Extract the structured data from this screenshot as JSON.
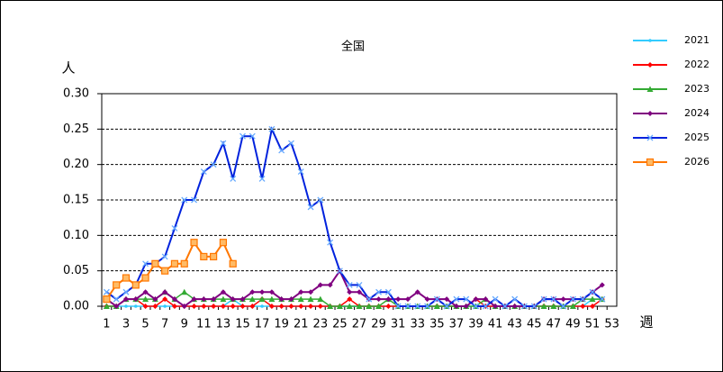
{
  "chart_data": {
    "type": "line",
    "title": "全国",
    "y_label": "人",
    "x_label": "週",
    "categories": [
      1,
      null,
      3,
      null,
      5,
      null,
      7,
      null,
      9,
      null,
      11,
      null,
      13,
      null,
      15,
      null,
      17,
      null,
      19,
      null,
      21,
      null,
      23,
      null,
      25,
      null,
      27,
      null,
      29,
      null,
      31,
      null,
      33,
      null,
      35,
      null,
      37,
      null,
      39,
      null,
      41,
      null,
      43,
      null,
      45,
      null,
      47,
      null,
      49,
      null,
      51,
      null,
      53
    ],
    "ylim": [
      0,
      0.3
    ],
    "yticks": [
      {
        "value": 0,
        "label": "0.00"
      },
      0.05,
      {
        "value": 0.1,
        "label": "0.10"
      },
      {
        "value": 0.15,
        "label": "0.15"
      },
      {
        "value": 0.2,
        "label": "0.20"
      },
      0.25,
      {
        "value": 0.3,
        "label": "0.30"
      }
    ],
    "grid": true,
    "series": [
      {
        "name": "2021",
        "color": "#33ccff",
        "marker": "dot",
        "values": [
          0,
          0,
          0,
          0,
          0,
          0,
          0,
          0,
          0,
          0,
          0,
          0,
          0,
          0.01,
          0,
          0,
          0,
          0,
          0,
          0,
          0,
          0,
          0,
          0,
          0,
          0,
          0,
          0,
          0,
          0,
          0,
          0,
          0,
          0,
          0,
          0,
          0,
          0,
          0,
          0,
          0,
          0,
          0,
          0,
          0,
          0,
          0,
          0,
          0,
          0,
          0.01,
          0.01,
          null
        ]
      },
      {
        "name": "2022",
        "color": "#ff0000",
        "marker": "diamond",
        "values": [
          0,
          0,
          0.01,
          0.01,
          0,
          0,
          0.01,
          0,
          0,
          0,
          0,
          0,
          0,
          0,
          0,
          0,
          0.01,
          0,
          0,
          0,
          0,
          0,
          0,
          0,
          0,
          0.01,
          0,
          0,
          0,
          0,
          0,
          0,
          0,
          0,
          0,
          0,
          0,
          0,
          0.01,
          0,
          0,
          0,
          0,
          0,
          0,
          0,
          0,
          0,
          0,
          0,
          0,
          0.01,
          null
        ]
      },
      {
        "name": "2023",
        "color": "#33aa33",
        "marker": "triangle",
        "values": [
          0,
          0,
          0.01,
          0.01,
          0.01,
          0.01,
          0.02,
          0.01,
          0.02,
          0.01,
          0.01,
          0.01,
          0.01,
          0.01,
          0.01,
          0.01,
          0.01,
          0.01,
          0.01,
          0.01,
          0.01,
          0.01,
          0.01,
          0,
          0,
          0,
          0,
          0,
          0,
          0.01,
          0,
          0,
          0,
          0,
          0,
          0,
          0,
          0,
          0,
          0.01,
          0,
          0,
          0,
          0,
          0,
          0,
          0,
          0,
          0,
          0.01,
          0.01,
          0.01,
          null
        ]
      },
      {
        "name": "2024",
        "color": "#800080",
        "marker": "diamond",
        "values": [
          0.01,
          0,
          0.01,
          0.01,
          0.02,
          0.01,
          0.02,
          0.01,
          0,
          0.01,
          0.01,
          0.01,
          0.02,
          0.01,
          0.01,
          0.02,
          0.02,
          0.02,
          0.01,
          0.01,
          0.02,
          0.02,
          0.03,
          0.03,
          0.05,
          0.02,
          0.02,
          0.01,
          0.01,
          0.01,
          0.01,
          0.01,
          0.02,
          0.01,
          0.01,
          0.01,
          0,
          0,
          0.01,
          0.01,
          0,
          0,
          0,
          0,
          0,
          0.01,
          0.01,
          0.01,
          0.01,
          0.01,
          0.02,
          0.03,
          null
        ]
      },
      {
        "name": "2025",
        "color": "#0022dd",
        "marker": "x",
        "values": [
          0.02,
          0.01,
          0.02,
          0.03,
          0.06,
          0.06,
          0.07,
          0.11,
          0.15,
          0.15,
          0.19,
          0.2,
          0.23,
          0.18,
          0.24,
          0.24,
          0.18,
          0.25,
          0.22,
          0.23,
          0.19,
          0.14,
          0.15,
          0.09,
          0.05,
          0.03,
          0.03,
          0.01,
          0.02,
          0.02,
          0,
          0,
          0,
          0,
          0.01,
          0,
          0.01,
          0.01,
          0,
          0,
          0.01,
          0,
          0.01,
          0,
          0,
          0.01,
          0.01,
          0,
          0.01,
          0.01,
          0.02,
          0.01,
          null
        ]
      },
      {
        "name": "2026",
        "color": "#ff7700",
        "marker": "square",
        "values": [
          0.01,
          0.03,
          0.04,
          0.03,
          0.04,
          0.06,
          0.05,
          0.06,
          0.06,
          0.09,
          0.07,
          0.07,
          0.09,
          0.06,
          null,
          null,
          null,
          null,
          null,
          null,
          null,
          null,
          null,
          null,
          null,
          null,
          null,
          null,
          null,
          null,
          null,
          null,
          null,
          null,
          null,
          null,
          null,
          null,
          null,
          null,
          null,
          null,
          null,
          null,
          null,
          null,
          null,
          null,
          null,
          null,
          null,
          null,
          null
        ]
      }
    ]
  }
}
